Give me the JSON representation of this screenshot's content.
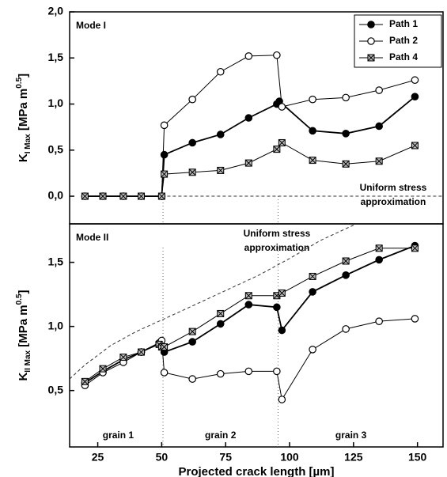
{
  "chart_data": [
    {
      "type": "line",
      "title": "Mode I",
      "ylabel": [
        "K",
        "I Max",
        " [MPa m",
        "0.5",
        "]"
      ],
      "xlim": [
        14,
        160
      ],
      "ylim": [
        -0.3,
        2.0
      ],
      "yticks": [
        {
          "value": 0,
          "label": "0,0"
        },
        {
          "value": 0.5,
          "label": "0,5"
        },
        {
          "value": 1,
          "label": "1,0"
        },
        {
          "value": 1.5,
          "label": "1,5"
        },
        {
          "value": 2,
          "label": "2,0"
        }
      ],
      "legend": "upper right",
      "grain_boundaries": [
        50.5,
        95.5
      ],
      "annotation": [
        "Uniform stress",
        "approximation"
      ],
      "reference": {
        "x": [
          50,
          160
        ],
        "values": [
          0,
          0
        ]
      },
      "series": [
        {
          "name": "Path 1",
          "color": "#000000",
          "marker": "filled-circle",
          "x": [
            20,
            27,
            35,
            42,
            50,
            51,
            62,
            73,
            84,
            95,
            96,
            109,
            122,
            135,
            149
          ],
          "values": [
            0,
            0,
            0,
            0,
            0,
            0.45,
            0.58,
            0.67,
            0.85,
            1.0,
            1.03,
            0.71,
            0.68,
            0.76,
            1.08
          ]
        },
        {
          "name": "Path 2",
          "color": "#000000",
          "marker": "open-circle",
          "x": [
            50,
            51,
            62,
            73,
            84,
            95,
            97,
            109,
            122,
            135,
            149
          ],
          "values": [
            0,
            0.77,
            1.05,
            1.35,
            1.52,
            1.53,
            0.97,
            1.05,
            1.07,
            1.15,
            1.26
          ]
        },
        {
          "name": "Path 4",
          "color": "#000000",
          "marker": "cross-square",
          "x": [
            20,
            27,
            35,
            42,
            50,
            51,
            62,
            73,
            84,
            95,
            97,
            109,
            122,
            135,
            149
          ],
          "values": [
            0,
            0,
            0,
            0,
            0,
            0.24,
            0.26,
            0.28,
            0.36,
            0.51,
            0.58,
            0.39,
            0.35,
            0.38,
            0.55
          ]
        }
      ]
    },
    {
      "type": "line",
      "title": "Mode II",
      "ylabel": [
        "K",
        "II Max",
        " [MPa m",
        "0.5",
        "]"
      ],
      "xlabel": "Projected crack length [µm]",
      "xlim": [
        14,
        160
      ],
      "ylim": [
        0.06,
        1.8
      ],
      "xticks": [
        25,
        50,
        75,
        100,
        125,
        150
      ],
      "yticks": [
        {
          "value": 0.5,
          "label": "0,5"
        },
        {
          "value": 1,
          "label": "1,0"
        },
        {
          "value": 1.5,
          "label": "1,5"
        }
      ],
      "grain_boundaries": [
        50.5,
        95.5
      ],
      "grains": [
        "grain 1",
        "grain 2",
        "grain 3"
      ],
      "grain_x": [
        33,
        73,
        124
      ],
      "annotation": [
        "Uniform stress",
        "approximation"
      ],
      "reference": {
        "x": [
          14,
          20,
          30,
          40,
          50,
          62,
          75,
          88,
          100,
          112,
          125
        ],
        "values": [
          0.59,
          0.7,
          0.85,
          0.96,
          1.05,
          1.16,
          1.28,
          1.4,
          1.53,
          1.67,
          1.79
        ]
      },
      "series": [
        {
          "name": "Path 1",
          "color": "#000000",
          "marker": "filled-circle",
          "x": [
            20,
            27,
            35,
            42,
            49,
            50,
            51,
            62,
            73,
            84,
            95,
            97,
            109,
            122,
            135,
            149
          ],
          "values": [
            0.56,
            0.65,
            0.74,
            0.8,
            0.87,
            0.85,
            0.8,
            0.88,
            1.02,
            1.17,
            1.15,
            0.97,
            1.27,
            1.4,
            1.52,
            1.63
          ]
        },
        {
          "name": "Path 2",
          "color": "#000000",
          "marker": "open-circle",
          "x": [
            20,
            27,
            35,
            42,
            49,
            50,
            51,
            62,
            73,
            84,
            95,
            97,
            109,
            122,
            135,
            149
          ],
          "values": [
            0.54,
            0.64,
            0.72,
            0.8,
            0.87,
            0.89,
            0.64,
            0.59,
            0.63,
            0.65,
            0.65,
            0.43,
            0.82,
            0.98,
            1.04,
            1.06
          ]
        },
        {
          "name": "Path 4",
          "color": "#000000",
          "marker": "cross-square",
          "x": [
            20,
            27,
            35,
            42,
            49,
            50,
            51,
            62,
            73,
            84,
            95,
            97,
            109,
            122,
            135,
            149
          ],
          "values": [
            0.57,
            0.67,
            0.76,
            0.8,
            0.86,
            0.84,
            0.84,
            0.96,
            1.1,
            1.24,
            1.24,
            1.26,
            1.39,
            1.51,
            1.61,
            1.61
          ]
        }
      ]
    }
  ]
}
